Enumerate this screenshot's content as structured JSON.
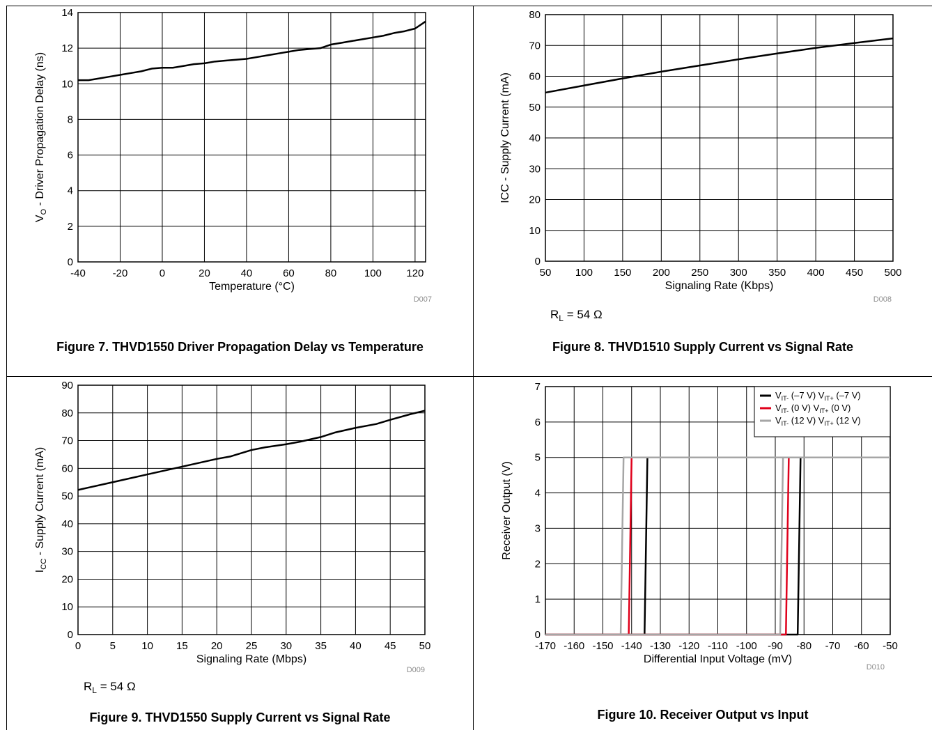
{
  "chart_data": [
    {
      "type": "line",
      "figure_label": "Figure 7. THVD1550 Driver Propagation Delay vs Temperature",
      "xlabel": "Temperature (°C)",
      "ylabel_main": "V",
      "ylabel_sub": "O",
      "ylabel_rest": " - Driver Propagation Delay (ns)",
      "code": "D007",
      "note": "",
      "xlim": [
        -40,
        125
      ],
      "ylim": [
        0,
        14
      ],
      "x_ticks": [
        -40,
        -20,
        0,
        20,
        40,
        60,
        80,
        100,
        120
      ],
      "y_ticks": [
        0,
        2,
        4,
        6,
        8,
        10,
        12,
        14
      ],
      "series": [
        {
          "color": "#000000",
          "x": [
            -40,
            -35,
            -30,
            -25,
            -20,
            -15,
            -10,
            -5,
            0,
            5,
            10,
            15,
            20,
            25,
            30,
            35,
            40,
            45,
            50,
            55,
            60,
            65,
            70,
            75,
            80,
            85,
            90,
            95,
            100,
            105,
            110,
            115,
            120,
            125
          ],
          "y": [
            10.2,
            10.2,
            10.3,
            10.4,
            10.5,
            10.6,
            10.7,
            10.85,
            10.9,
            10.9,
            11.0,
            11.1,
            11.15,
            11.25,
            11.3,
            11.35,
            11.4,
            11.5,
            11.6,
            11.7,
            11.8,
            11.9,
            11.95,
            12.0,
            12.2,
            12.3,
            12.4,
            12.5,
            12.6,
            12.7,
            12.85,
            12.95,
            13.1,
            13.5
          ]
        }
      ]
    },
    {
      "type": "line",
      "figure_label": "Figure 8. THVD1510 Supply Current vs Signal Rate",
      "xlabel": "Signaling Rate (Kbps)",
      "ylabel_main": "ICC - Supply Current (mA)",
      "ylabel_sub": "",
      "ylabel_rest": "",
      "code": "D008",
      "note": "R",
      "note_sub": "L",
      "note_rest": " = 54 Ω",
      "xlim": [
        50,
        500
      ],
      "ylim": [
        0,
        80
      ],
      "x_ticks": [
        50,
        100,
        150,
        200,
        250,
        300,
        350,
        400,
        450,
        500
      ],
      "y_ticks": [
        0,
        10,
        20,
        30,
        40,
        50,
        60,
        70,
        80
      ],
      "series": [
        {
          "color": "#000000",
          "x": [
            50,
            100,
            150,
            200,
            250,
            300,
            350,
            400,
            450,
            500
          ],
          "y": [
            54.7,
            57.0,
            59.3,
            61.5,
            63.5,
            65.5,
            67.4,
            69.2,
            70.8,
            72.3
          ]
        }
      ]
    },
    {
      "type": "line",
      "figure_label": "Figure 9. THVD1550 Supply Current vs Signal Rate",
      "xlabel": "Signaling Rate (Mbps)",
      "ylabel_main": "I",
      "ylabel_sub": "CC",
      "ylabel_rest": " - Supply Current (mA)",
      "code": "D009",
      "note": "R",
      "note_sub": "L",
      "note_rest": " = 54 Ω",
      "xlim": [
        0,
        50
      ],
      "ylim": [
        0,
        90
      ],
      "x_ticks": [
        0,
        5,
        10,
        15,
        20,
        25,
        30,
        35,
        40,
        45,
        50
      ],
      "y_ticks": [
        0,
        10,
        20,
        30,
        40,
        50,
        60,
        70,
        80,
        90
      ],
      "series": [
        {
          "color": "#000000",
          "x": [
            0,
            5,
            10,
            15,
            20,
            22,
            25,
            27,
            30,
            32,
            35,
            37,
            40,
            43,
            45,
            48,
            50
          ],
          "y": [
            52.2,
            55.0,
            57.8,
            60.6,
            63.4,
            64.3,
            66.6,
            67.6,
            68.7,
            69.6,
            71.3,
            72.9,
            74.6,
            76.0,
            77.5,
            79.6,
            80.8
          ]
        }
      ]
    },
    {
      "type": "line",
      "figure_label": "Figure 10. Receiver Output vs Input",
      "xlabel": "Differential Input Voltage (mV)",
      "ylabel_main": "Receiver Output (V)",
      "ylabel_sub": "",
      "ylabel_rest": "",
      "code": "D010",
      "note": "",
      "xlim": [
        -170,
        -50
      ],
      "ylim": [
        0,
        7
      ],
      "x_ticks": [
        -170,
        -160,
        -150,
        -140,
        -130,
        -120,
        -110,
        -100,
        -90,
        -80,
        -70,
        -60,
        -50
      ],
      "y_ticks": [
        0,
        1,
        2,
        3,
        4,
        5,
        6,
        7
      ],
      "legend": [
        {
          "a": "V",
          "as": "IT-",
          "b": " (–7 V)",
          "c": "V",
          "cs": "IT+",
          "d": " (–7 V)",
          "color": "#000000"
        },
        {
          "a": "V",
          "as": "IT-",
          "b": "  (0 V)",
          "c": "V",
          "cs": "IT+",
          "d": " (0 V)",
          "color": "#e0001b"
        },
        {
          "a": "V",
          "as": "IT-",
          "b": " (12 V)",
          "c": "V",
          "cs": "IT+",
          "d": " (12 V)",
          "color": "#a6a6a6"
        }
      ],
      "series": [
        {
          "color": "#000000",
          "x": [
            -135.5,
            -134.5,
            -50
          ],
          "y": [
            0,
            5,
            5
          ],
          "x2": [
            -50,
            -81.2,
            -82.2,
            -170
          ],
          "y2": [
            5,
            5,
            0,
            0
          ]
        },
        {
          "color": "#e0001b",
          "x": [
            -141.0,
            -140.0,
            -50
          ],
          "y": [
            0,
            5,
            5
          ],
          "x2": [
            -50,
            -85.3,
            -86.3,
            -170
          ],
          "y2": [
            5,
            5,
            0,
            0
          ]
        },
        {
          "color": "#a6a6a6",
          "x": [
            -143.8,
            -142.8,
            -50
          ],
          "y": [
            0,
            5,
            5
          ],
          "x2": [
            -50,
            -87.3,
            -88.3,
            -170
          ],
          "y2": [
            5,
            5,
            0,
            0
          ]
        }
      ]
    }
  ]
}
